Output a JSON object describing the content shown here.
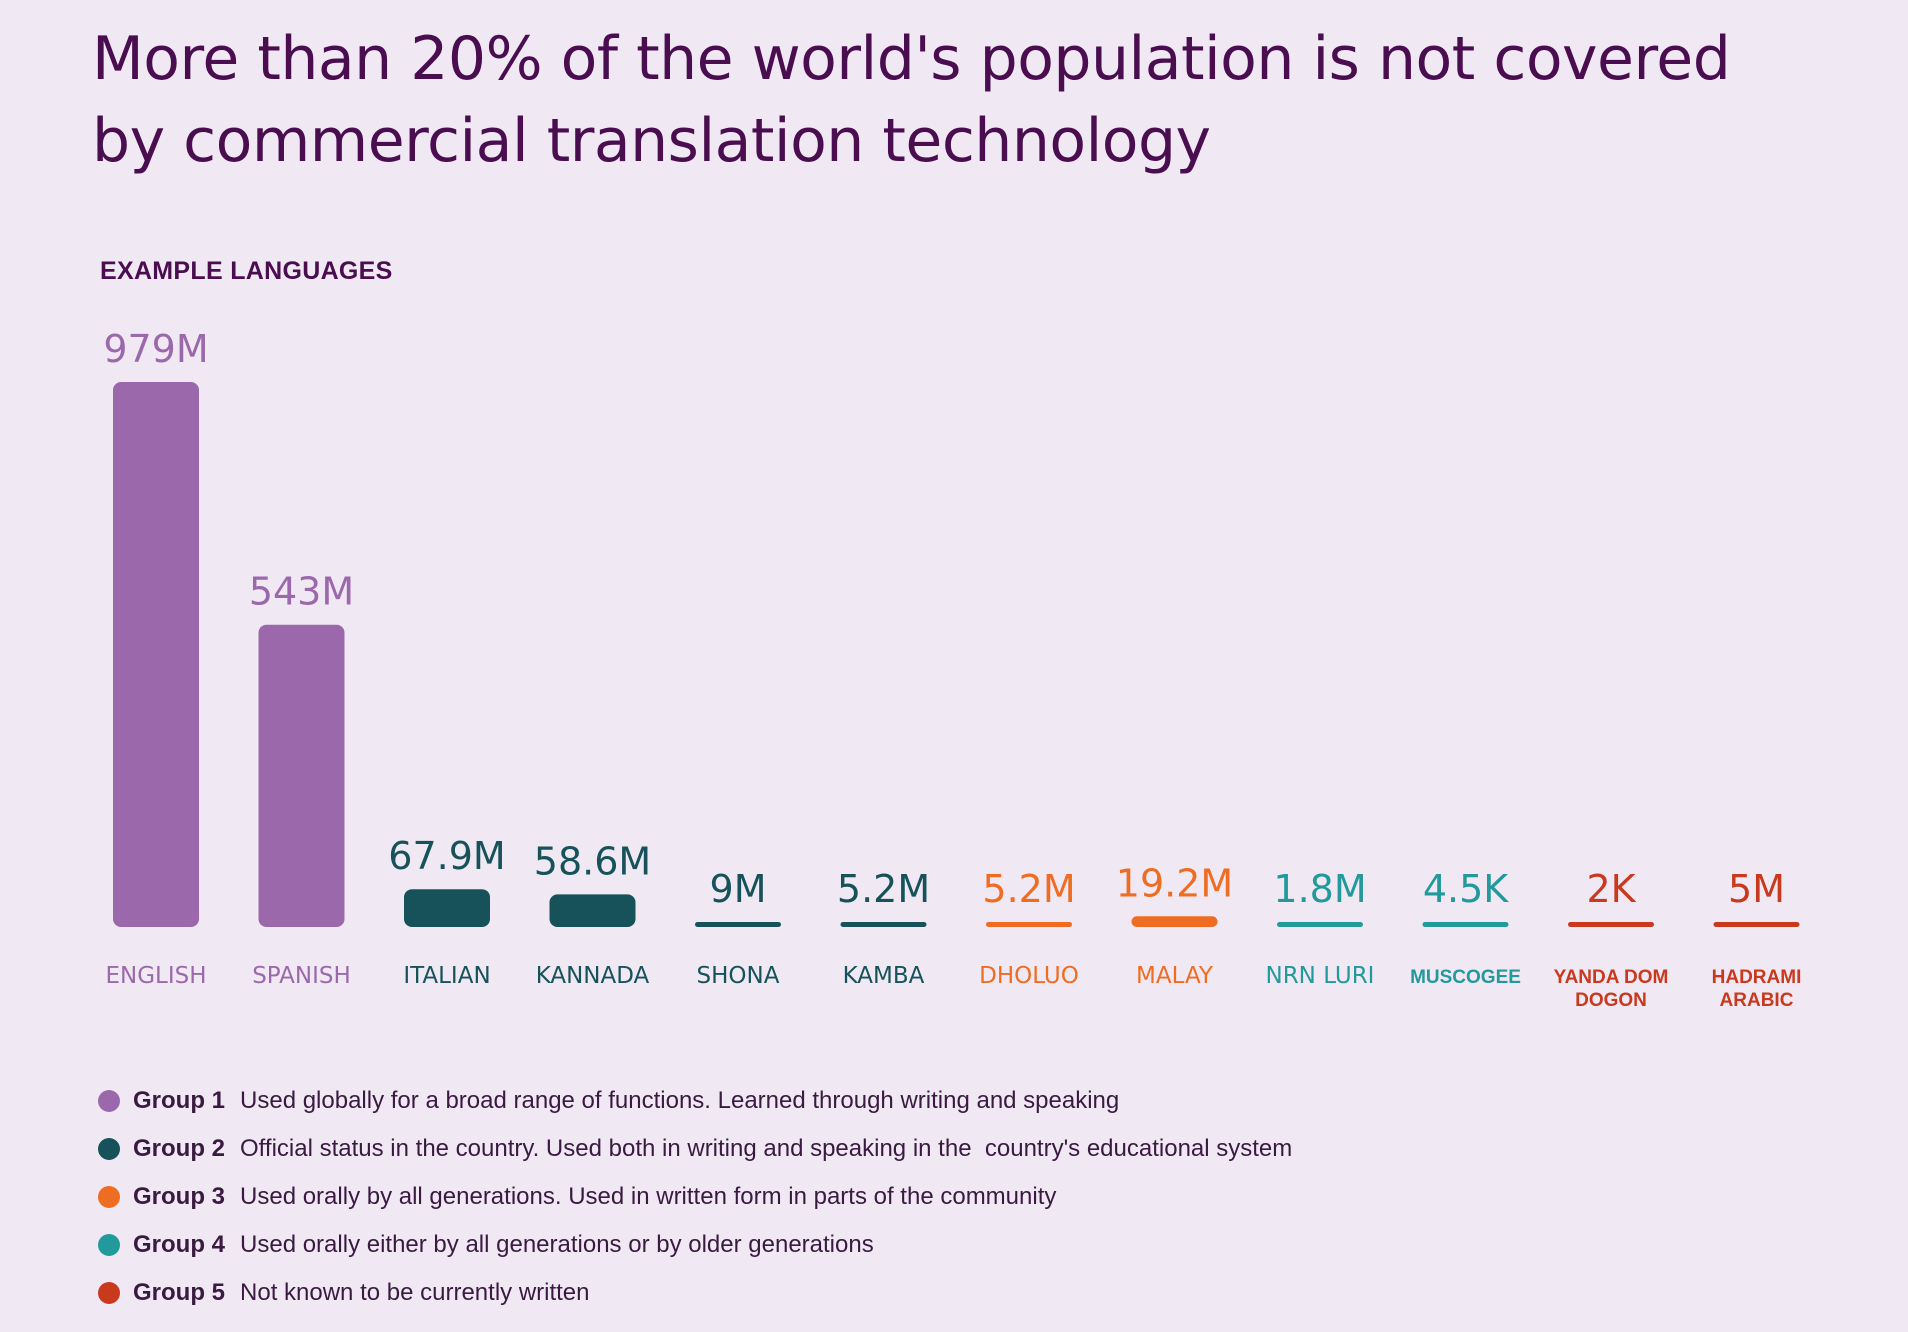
{
  "title": "More than 20% of the world's population is not covered by commercial translation technology",
  "subtitle": "EXAMPLE LANGUAGES",
  "colors": {
    "background": "#f0e9f4",
    "title": "#4a0d4f",
    "group1": "#9b69ab",
    "group2": "#17525a",
    "group3": "#ee6d22",
    "group4": "#22999a",
    "group5": "#c8391e"
  },
  "chart_data": {
    "type": "bar",
    "title": "More than 20% of the world's population is not covered by commercial translation technology",
    "subtitle": "EXAMPLE LANGUAGES",
    "grid": false,
    "legend_position": "bottom",
    "categories": [
      "ENGLISH",
      "SPANISH",
      "ITALIAN",
      "KANNADA",
      "SHONA",
      "KAMBA",
      "DHOLUO",
      "MALAY",
      "NRN LURI",
      "MUSCOGEE",
      "YANDA DOM DOGON",
      "HADRAMI ARABIC"
    ],
    "bars": [
      {
        "category": "ENGLISH",
        "label": "979M",
        "value": 979000000,
        "group": 1
      },
      {
        "category": "SPANISH",
        "label": "543M",
        "value": 543000000,
        "group": 1
      },
      {
        "category": "ITALIAN",
        "label": "67.9M",
        "value": 67900000,
        "group": 2
      },
      {
        "category": "KANNADA",
        "label": "58.6M",
        "value": 58600000,
        "group": 2
      },
      {
        "category": "SHONA",
        "label": "9M",
        "value": 9000000,
        "group": 2
      },
      {
        "category": "KAMBA",
        "label": "5.2M",
        "value": 5200000,
        "group": 2
      },
      {
        "category": "DHOLUO",
        "label": "5.2M",
        "value": 5200000,
        "group": 3
      },
      {
        "category": "MALAY",
        "label": "19.2M",
        "value": 19200000,
        "group": 3
      },
      {
        "category": "NRN LURI",
        "label": "1.8M",
        "value": 1800000,
        "group": 4
      },
      {
        "category": "MUSCOGEE",
        "label": "4.5K",
        "value": 4500,
        "group": 4
      },
      {
        "category": "YANDA DOM\nDOGON",
        "label": "2K",
        "value": 2000,
        "group": 5
      },
      {
        "category": "HADRAMI\nARABIC",
        "label": "5M",
        "value": 5000000,
        "group": 5
      }
    ],
    "legend": [
      {
        "group": 1,
        "name": "Group 1",
        "description": "Used globally for a broad range of functions. Learned through writing and speaking",
        "color": "#9b69ab"
      },
      {
        "group": 2,
        "name": "Group 2",
        "description": "Official status in the country. Used both in writing and speaking in the  country's educational system",
        "color": "#17525a"
      },
      {
        "group": 3,
        "name": "Group 3",
        "description": "Used orally by all generations. Used in written form in parts of the community",
        "color": "#ee6d22"
      },
      {
        "group": 4,
        "name": "Group 4",
        "description": "Used orally either by all generations or by older generations",
        "color": "#22999a"
      },
      {
        "group": 5,
        "name": "Group 5",
        "description": "Not known to be currently written",
        "color": "#c8391e"
      }
    ]
  }
}
